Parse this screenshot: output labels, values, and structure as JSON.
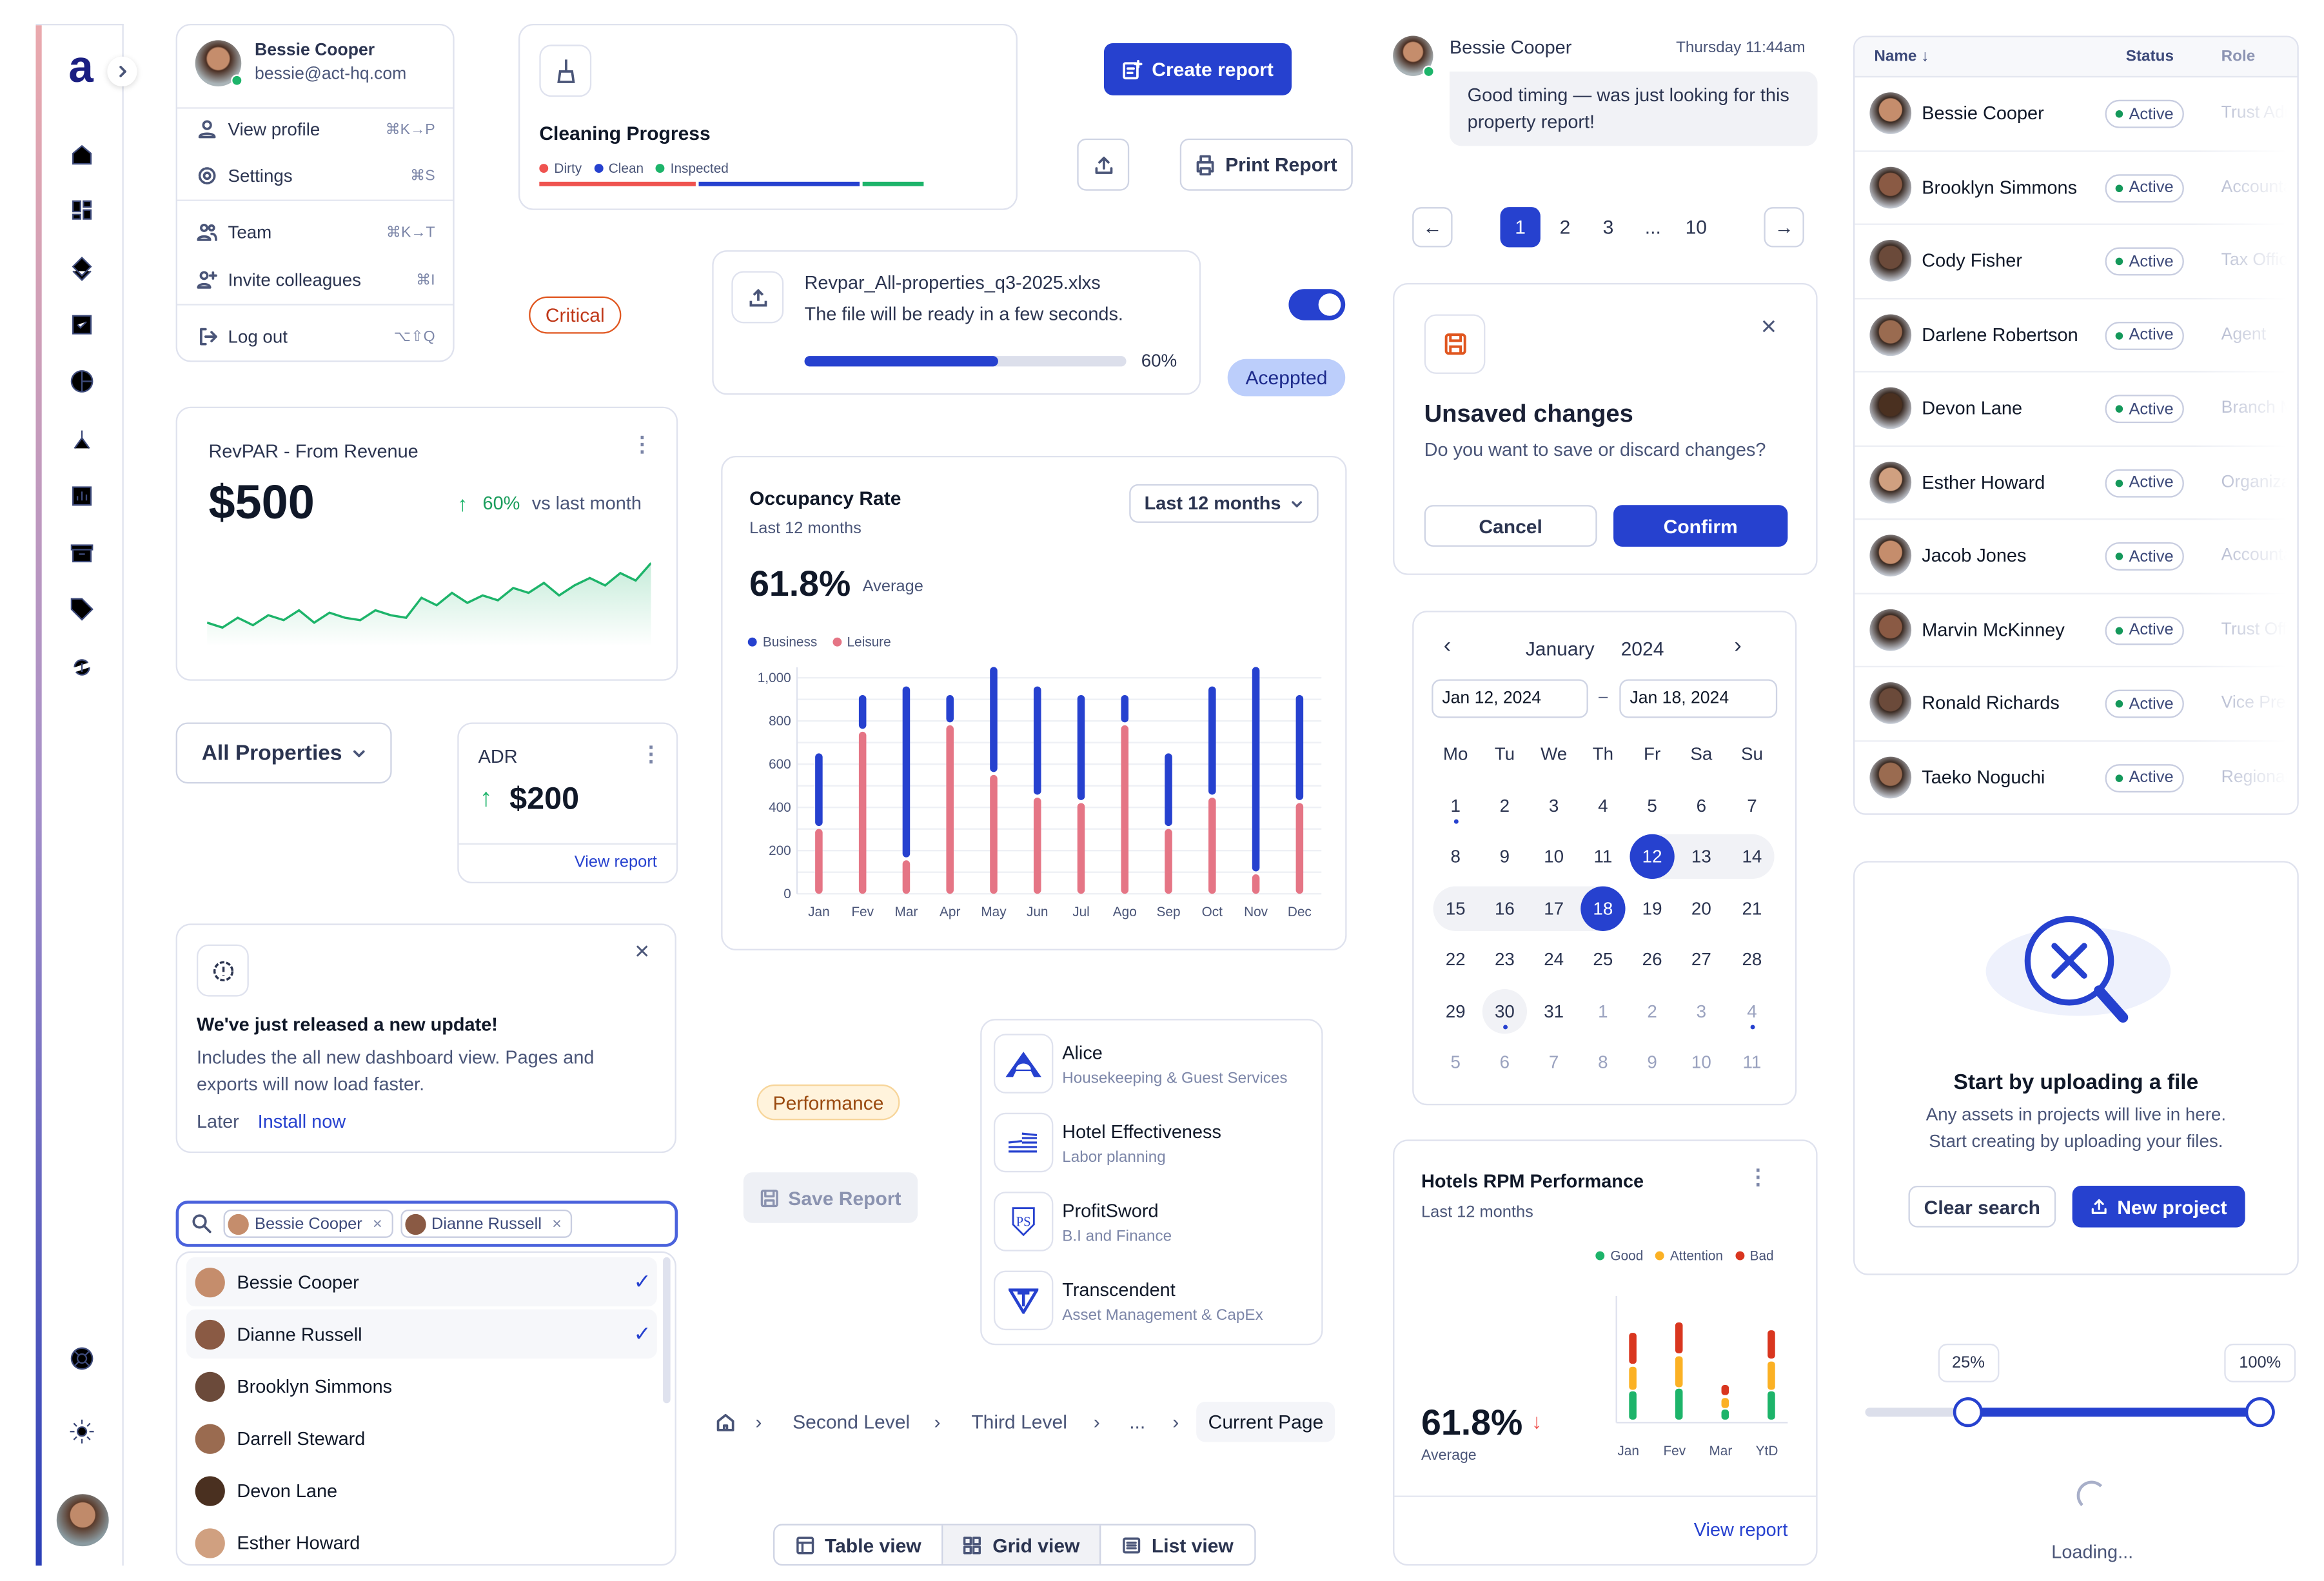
{
  "sidebar": {
    "logo": "a",
    "nav_icons": [
      "home-icon",
      "dashboard-icon",
      "layers-icon",
      "checkbox-icon",
      "pie-chart-icon",
      "hierarchy-icon",
      "report-icon",
      "archive-icon",
      "tag-icon",
      "currency-sync-icon"
    ],
    "bottom_icons": [
      "support-icon",
      "settings-icon"
    ]
  },
  "profile_menu": {
    "name": "Bessie Cooper",
    "email": "bessie@act-hq.com",
    "items": [
      {
        "label": "View profile",
        "shortcut": "⌘K→P"
      },
      {
        "label": "Settings",
        "shortcut": "⌘S"
      },
      {
        "label": "Team",
        "shortcut": "⌘K→T"
      },
      {
        "label": "Invite colleagues",
        "shortcut": "⌘I"
      },
      {
        "label": "Log out",
        "shortcut": "⌥⇧Q"
      }
    ]
  },
  "cleaning": {
    "title": "Cleaning Progress",
    "legend": [
      {
        "label": "Dirty",
        "color": "#ef5350",
        "fraction": 0.41
      },
      {
        "label": "Clean",
        "color": "#2641cf",
        "fraction": 0.42
      },
      {
        "label": "Inspected",
        "color": "#1db46a",
        "fraction": 0.16
      }
    ]
  },
  "badges": {
    "critical": "Critical",
    "accepted": "Aceppted",
    "performance": "Performance"
  },
  "toolbar": {
    "create_report": "Create report",
    "print_report": "Print Report",
    "save_report": "Save Report"
  },
  "file_upload": {
    "filename": "Revpar_All-properties_q3-2025.xlxs",
    "message": "The file will be ready in a few seconds.",
    "progress": 0.6,
    "progress_label": "60%"
  },
  "toggle": {
    "on": true
  },
  "revpar": {
    "title": "RevPAR - From Revenue",
    "value": "$500",
    "change": "60%",
    "compare": "vs last month",
    "sparkline": [
      22,
      20,
      24,
      21,
      25,
      23,
      27,
      22,
      26,
      24,
      23,
      27,
      25,
      24,
      32,
      29,
      34,
      30,
      33,
      31,
      36,
      34,
      38,
      33,
      37,
      40,
      37,
      42,
      39,
      46
    ]
  },
  "properties_select": {
    "value": "All Properties"
  },
  "adr": {
    "title": "ADR",
    "value": "$200",
    "link": "View report"
  },
  "occupancy": {
    "title": "Occupancy Rate",
    "subtitle": "Last 12 months",
    "range_select": "Last 12 months",
    "value": "61.8%",
    "value_label": "Average"
  },
  "chart_data": [
    {
      "type": "bar",
      "title": "Occupancy Rate",
      "stacked": true,
      "categories": [
        "Jan",
        "Fev",
        "Mar",
        "Apr",
        "May",
        "Jun",
        "Jul",
        "Ago",
        "Sep",
        "Oct",
        "Nov",
        "Dec"
      ],
      "series": [
        {
          "name": "Business",
          "color": "#2641cf",
          "values": [
            350,
            170,
            805,
            140,
            500,
            515,
            500,
            140,
            350,
            515,
            960,
            500
          ]
        },
        {
          "name": "Leisure",
          "color": "#e57585",
          "values": [
            300,
            750,
            155,
            780,
            550,
            445,
            420,
            780,
            300,
            445,
            90,
            420
          ]
        }
      ],
      "yticks": [
        "0",
        "200",
        "400",
        "600",
        "800",
        "1,000"
      ],
      "ylim": [
        0,
        1050
      ],
      "grid": true,
      "legend": "top-left"
    },
    {
      "type": "bar",
      "title": "Hotels RPM Performance",
      "stacked": true,
      "categories": [
        "Jan",
        "Fev",
        "Mar",
        "YtD"
      ],
      "series": [
        {
          "name": "Good",
          "color": "#1db46a",
          "values": [
            12,
            13,
            5,
            12
          ]
        },
        {
          "name": "Attention",
          "color": "#fbb124",
          "values": [
            10,
            13,
            5,
            12
          ]
        },
        {
          "name": "Bad",
          "color": "#d9361f",
          "values": [
            13,
            13,
            5,
            12
          ]
        }
      ],
      "legend": "top-right"
    }
  ],
  "update_notice": {
    "title": "We've just released a new update!",
    "body": "Includes the all new dashboard view. Pages and exports will now load faster.",
    "later": "Later",
    "install": "Install now"
  },
  "apps": [
    {
      "name": "Alice",
      "desc": "Housekeeping & Guest Services"
    },
    {
      "name": "Hotel Effectiveness",
      "desc": "Labor planning"
    },
    {
      "name": "ProfitSword",
      "desc": "B.I and Finance"
    },
    {
      "name": "Transcendent",
      "desc": "Asset Management & CapEx"
    }
  ],
  "multiselect": {
    "chips": [
      "Bessie Cooper",
      "Dianne Russell"
    ],
    "options": [
      {
        "name": "Bessie Cooper",
        "selected": true
      },
      {
        "name": "Dianne Russell",
        "selected": true
      },
      {
        "name": "Brooklyn Simmons",
        "selected": false
      },
      {
        "name": "Darrell Steward",
        "selected": false
      },
      {
        "name": "Devon Lane",
        "selected": false
      },
      {
        "name": "Esther Howard",
        "selected": false
      }
    ]
  },
  "breadcrumb": [
    "Second Level",
    "Third Level",
    "...",
    "Current Page"
  ],
  "view_toggle": [
    {
      "label": "Table view",
      "active": false
    },
    {
      "label": "Grid view",
      "active": true
    },
    {
      "label": "List view",
      "active": false
    }
  ],
  "chat": {
    "name": "Bessie Cooper",
    "time": "Thursday 11:44am",
    "message": "Good timing — was just looking for this property report!"
  },
  "pagination": {
    "pages": [
      "1",
      "2",
      "3",
      "...",
      "10"
    ],
    "current": "1"
  },
  "modal": {
    "title": "Unsaved changes",
    "body": "Do you want to save or discard changes?",
    "cancel": "Cancel",
    "confirm": "Confirm"
  },
  "calendar": {
    "month": "January",
    "year": "2024",
    "start": "Jan 12, 2024",
    "end": "Jan 18, 2024",
    "separator": "–",
    "weekdays": [
      "Mo",
      "Tu",
      "We",
      "Th",
      "Fr",
      "Sa",
      "Su"
    ],
    "weeks": [
      [
        "1",
        "2",
        "3",
        "4",
        "5",
        "6",
        "7"
      ],
      [
        "8",
        "9",
        "10",
        "11",
        "12",
        "13",
        "14"
      ],
      [
        "15",
        "16",
        "17",
        "18",
        "19",
        "20",
        "21"
      ],
      [
        "22",
        "23",
        "24",
        "25",
        "26",
        "27",
        "28"
      ],
      [
        "29",
        "30",
        "31",
        "1",
        "2",
        "3",
        "4"
      ],
      [
        "5",
        "6",
        "7",
        "8",
        "9",
        "10",
        "11"
      ]
    ],
    "range_start": "12",
    "range_end": "18",
    "today": "30"
  },
  "rpm": {
    "title": "Hotels RPM Performance",
    "subtitle": "Last 12 months",
    "value": "61.8%",
    "value_label": "Average",
    "link": "View report"
  },
  "table": {
    "columns": [
      "Name",
      "Status",
      "Role"
    ],
    "rows": [
      {
        "name": "Bessie Cooper",
        "status": "Active",
        "role": "Trust Admi"
      },
      {
        "name": "Brooklyn Simmons",
        "status": "Active",
        "role": "Accountant"
      },
      {
        "name": "Cody Fisher",
        "status": "Active",
        "role": "Tax Officer"
      },
      {
        "name": "Darlene Robertson",
        "status": "Active",
        "role": "Agent"
      },
      {
        "name": "Devon Lane",
        "status": "Active",
        "role": "Branch Ma"
      },
      {
        "name": "Esther Howard",
        "status": "Active",
        "role": "Organizatio"
      },
      {
        "name": "Jacob Jones",
        "status": "Active",
        "role": "Accountant"
      },
      {
        "name": "Marvin McKinney",
        "status": "Active",
        "role": "Trust Offic"
      },
      {
        "name": "Ronald Richards",
        "status": "Active",
        "role": "Vice Presid"
      },
      {
        "name": "Taeko Noguchi",
        "status": "Active",
        "role": "Regional M"
      }
    ]
  },
  "empty_state": {
    "title": "Start by uploading a file",
    "body_line1": "Any assets in projects will live in here.",
    "body_line2": "Start creating by uploading your files.",
    "clear": "Clear search",
    "new_project": "New project"
  },
  "slider": {
    "low_label": "25%",
    "high_label": "100%",
    "low": 0.25,
    "high": 1.0
  },
  "loading": "Loading..."
}
